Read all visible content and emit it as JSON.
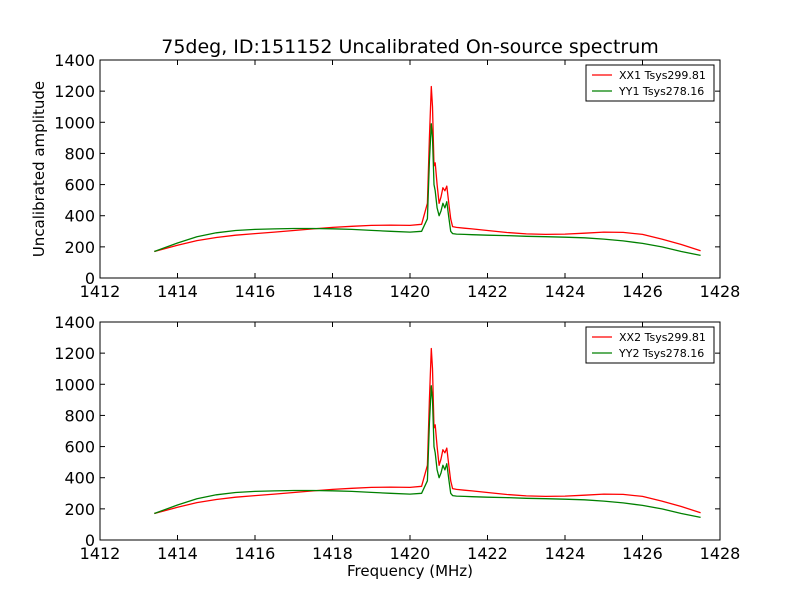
{
  "chart_data": [
    {
      "type": "line",
      "title": "75deg, ID:151152 Uncalibrated On-source spectrum",
      "xlabel": "",
      "ylabel": "Uncalibrated amplitude",
      "xlim": [
        1412,
        1428
      ],
      "ylim": [
        0,
        1400
      ],
      "xticks": [
        "1412",
        "1414",
        "1416",
        "1418",
        "1420",
        "1422",
        "1424",
        "1426",
        "1428"
      ],
      "yticks": [
        "0",
        "200",
        "400",
        "600",
        "800",
        "1000",
        "1200",
        "1400"
      ],
      "legend_position": "upper right",
      "series": [
        {
          "name": "XX1 Tsys299.81",
          "color": "#ff0000",
          "x": [
            1413.4,
            1414.0,
            1414.5,
            1415.0,
            1415.5,
            1416.0,
            1416.5,
            1417.0,
            1417.5,
            1418.0,
            1418.5,
            1419.0,
            1419.5,
            1420.0,
            1420.3,
            1420.45,
            1420.5,
            1420.55,
            1420.58,
            1420.62,
            1420.65,
            1420.7,
            1420.75,
            1420.8,
            1420.85,
            1420.9,
            1420.95,
            1421.0,
            1421.05,
            1421.1,
            1421.2,
            1421.4,
            1421.6,
            1422.0,
            1422.5,
            1423.0,
            1423.5,
            1424.0,
            1424.5,
            1425.0,
            1425.5,
            1426.0,
            1426.5,
            1427.0,
            1427.5
          ],
          "y": [
            170,
            210,
            240,
            260,
            275,
            285,
            295,
            305,
            315,
            325,
            332,
            338,
            340,
            338,
            345,
            480,
            900,
            1230,
            1100,
            720,
            740,
            600,
            480,
            520,
            580,
            560,
            590,
            480,
            380,
            330,
            325,
            320,
            315,
            305,
            292,
            283,
            280,
            282,
            288,
            295,
            293,
            280,
            250,
            215,
            175
          ]
        },
        {
          "name": "YY1 Tsys278.16",
          "color": "#008000",
          "x": [
            1413.4,
            1414.0,
            1414.5,
            1415.0,
            1415.5,
            1416.0,
            1416.5,
            1417.0,
            1417.5,
            1418.0,
            1418.5,
            1419.0,
            1419.5,
            1420.0,
            1420.3,
            1420.45,
            1420.5,
            1420.55,
            1420.58,
            1420.62,
            1420.65,
            1420.7,
            1420.75,
            1420.8,
            1420.85,
            1420.9,
            1420.95,
            1421.0,
            1421.05,
            1421.1,
            1421.2,
            1421.4,
            1421.6,
            1422.0,
            1422.5,
            1423.0,
            1423.5,
            1424.0,
            1424.5,
            1425.0,
            1425.5,
            1426.0,
            1426.5,
            1427.0,
            1427.5
          ],
          "y": [
            170,
            225,
            265,
            290,
            305,
            312,
            315,
            318,
            318,
            316,
            312,
            306,
            300,
            295,
            300,
            380,
            750,
            990,
            900,
            600,
            560,
            450,
            400,
            430,
            480,
            450,
            490,
            390,
            300,
            285,
            282,
            280,
            278,
            275,
            272,
            268,
            265,
            262,
            258,
            250,
            238,
            222,
            200,
            170,
            145
          ]
        }
      ]
    },
    {
      "type": "line",
      "title": "",
      "xlabel": "Frequency (MHz)",
      "ylabel": "",
      "xlim": [
        1412,
        1428
      ],
      "ylim": [
        0,
        1400
      ],
      "xticks": [
        "1412",
        "1414",
        "1416",
        "1418",
        "1420",
        "1422",
        "1424",
        "1426",
        "1428"
      ],
      "yticks": [
        "0",
        "200",
        "400",
        "600",
        "800",
        "1000",
        "1200",
        "1400"
      ],
      "legend_position": "upper right",
      "series": [
        {
          "name": "XX2 Tsys299.81",
          "color": "#ff0000",
          "x": [
            1413.4,
            1414.0,
            1414.5,
            1415.0,
            1415.5,
            1416.0,
            1416.5,
            1417.0,
            1417.5,
            1418.0,
            1418.5,
            1419.0,
            1419.5,
            1420.0,
            1420.3,
            1420.45,
            1420.5,
            1420.55,
            1420.58,
            1420.62,
            1420.65,
            1420.7,
            1420.75,
            1420.8,
            1420.85,
            1420.9,
            1420.95,
            1421.0,
            1421.05,
            1421.1,
            1421.2,
            1421.4,
            1421.6,
            1422.0,
            1422.5,
            1423.0,
            1423.5,
            1424.0,
            1424.5,
            1425.0,
            1425.5,
            1426.0,
            1426.5,
            1427.0,
            1427.5
          ],
          "y": [
            170,
            210,
            240,
            260,
            275,
            285,
            295,
            305,
            315,
            325,
            332,
            338,
            340,
            338,
            345,
            480,
            900,
            1230,
            1100,
            720,
            740,
            600,
            480,
            520,
            580,
            560,
            590,
            480,
            380,
            330,
            325,
            320,
            315,
            305,
            292,
            283,
            280,
            282,
            288,
            295,
            293,
            280,
            250,
            215,
            175
          ]
        },
        {
          "name": "YY2 Tsys278.16",
          "color": "#008000",
          "x": [
            1413.4,
            1414.0,
            1414.5,
            1415.0,
            1415.5,
            1416.0,
            1416.5,
            1417.0,
            1417.5,
            1418.0,
            1418.5,
            1419.0,
            1419.5,
            1420.0,
            1420.3,
            1420.45,
            1420.5,
            1420.55,
            1420.58,
            1420.62,
            1420.65,
            1420.7,
            1420.75,
            1420.8,
            1420.85,
            1420.9,
            1420.95,
            1421.0,
            1421.05,
            1421.1,
            1421.2,
            1421.4,
            1421.6,
            1422.0,
            1422.5,
            1423.0,
            1423.5,
            1424.0,
            1424.5,
            1425.0,
            1425.5,
            1426.0,
            1426.5,
            1427.0,
            1427.5
          ],
          "y": [
            170,
            225,
            265,
            290,
            305,
            312,
            315,
            318,
            318,
            316,
            312,
            306,
            300,
            295,
            300,
            380,
            750,
            990,
            900,
            600,
            560,
            450,
            400,
            430,
            480,
            450,
            490,
            390,
            300,
            285,
            282,
            280,
            278,
            275,
            272,
            268,
            265,
            262,
            258,
            250,
            238,
            222,
            200,
            170,
            145
          ]
        }
      ]
    }
  ]
}
